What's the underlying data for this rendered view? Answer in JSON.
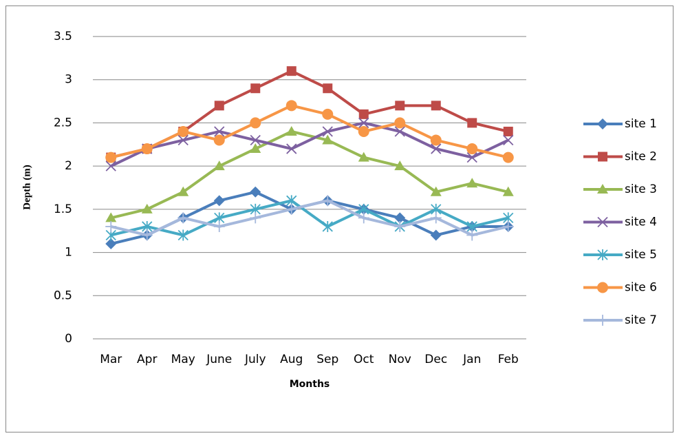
{
  "chart_data": {
    "type": "line",
    "x_label": "Months",
    "y_label": "Depth (m)",
    "categories": [
      "Mar",
      "Apr",
      "May",
      "June",
      "July",
      "Aug",
      "Sep",
      "Oct",
      "Nov",
      "Dec",
      "Jan",
      "Feb"
    ],
    "series": [
      {
        "name": "site 1",
        "color": "#4a7ebb",
        "marker": "diamond",
        "values": [
          1.1,
          1.2,
          1.4,
          1.6,
          1.7,
          1.5,
          1.6,
          1.5,
          1.4,
          1.2,
          1.3,
          1.3
        ]
      },
      {
        "name": "site 2",
        "color": "#be4b48",
        "marker": "square",
        "values": [
          2.1,
          2.2,
          2.4,
          2.7,
          2.9,
          3.1,
          2.9,
          2.6,
          2.7,
          2.7,
          2.5,
          2.4
        ]
      },
      {
        "name": "site 3",
        "color": "#98b954",
        "marker": "triangle",
        "values": [
          1.4,
          1.5,
          1.7,
          2.0,
          2.2,
          2.4,
          2.3,
          2.1,
          2.0,
          1.7,
          1.8,
          1.7
        ]
      },
      {
        "name": "site 4",
        "color": "#7d60a0",
        "marker": "x",
        "values": [
          2.0,
          2.2,
          2.3,
          2.4,
          2.3,
          2.2,
          2.4,
          2.5,
          2.4,
          2.2,
          2.1,
          2.3
        ]
      },
      {
        "name": "site 5",
        "color": "#46aac5",
        "marker": "star",
        "values": [
          1.2,
          1.3,
          1.2,
          1.4,
          1.5,
          1.6,
          1.3,
          1.5,
          1.3,
          1.5,
          1.3,
          1.4
        ]
      },
      {
        "name": "site 6",
        "color": "#f79646",
        "marker": "circle",
        "values": [
          2.1,
          2.2,
          2.4,
          2.3,
          2.5,
          2.7,
          2.6,
          2.4,
          2.5,
          2.3,
          2.2,
          2.1
        ]
      },
      {
        "name": "site 7",
        "color": "#a5b8dc",
        "marker": "plus",
        "values": [
          1.3,
          1.2,
          1.4,
          1.3,
          1.4,
          1.5,
          1.6,
          1.4,
          1.3,
          1.4,
          1.2,
          1.3
        ]
      }
    ],
    "ylim": [
      0,
      3.5
    ],
    "yticks": [
      0,
      0.5,
      1,
      1.5,
      2,
      2.5,
      3,
      3.5
    ],
    "grid": true,
    "legend": "right"
  }
}
